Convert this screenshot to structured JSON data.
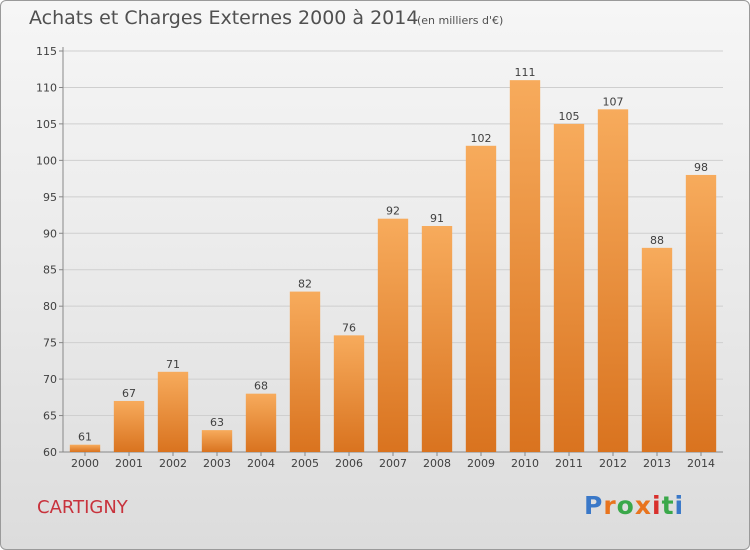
{
  "header": {
    "title": "Achats et Charges Externes 2000 à 2014",
    "subtitle": "(en milliers d'€)"
  },
  "footer": {
    "commune": "CARTIGNY",
    "logo_text": "Proxiti",
    "logo_colors": [
      "#3a78c8",
      "#e8741e",
      "#3aa84a",
      "#e8741e",
      "#d8302c",
      "#3aa84a",
      "#3a78c8"
    ]
  },
  "colors": {
    "bar_light": "#f7ab5c",
    "bar_dark": "#d9731f",
    "grid": "#cfcfcf",
    "axis_text": "#404040"
  },
  "chart_data": {
    "type": "bar",
    "title": "Achats et Charges Externes 2000 à 2014",
    "subtitle": "(en milliers d'€)",
    "xlabel": "",
    "ylabel": "",
    "categories": [
      "2000",
      "2001",
      "2002",
      "2003",
      "2004",
      "2005",
      "2006",
      "2007",
      "2008",
      "2009",
      "2010",
      "2011",
      "2012",
      "2013",
      "2014"
    ],
    "values": [
      61,
      67,
      71,
      63,
      68,
      82,
      76,
      92,
      91,
      102,
      111,
      105,
      107,
      88,
      98
    ],
    "ylim": [
      60,
      115
    ],
    "yticks": [
      60,
      65,
      70,
      75,
      80,
      85,
      90,
      95,
      100,
      105,
      110,
      115
    ],
    "grid": true,
    "legend": "none"
  }
}
